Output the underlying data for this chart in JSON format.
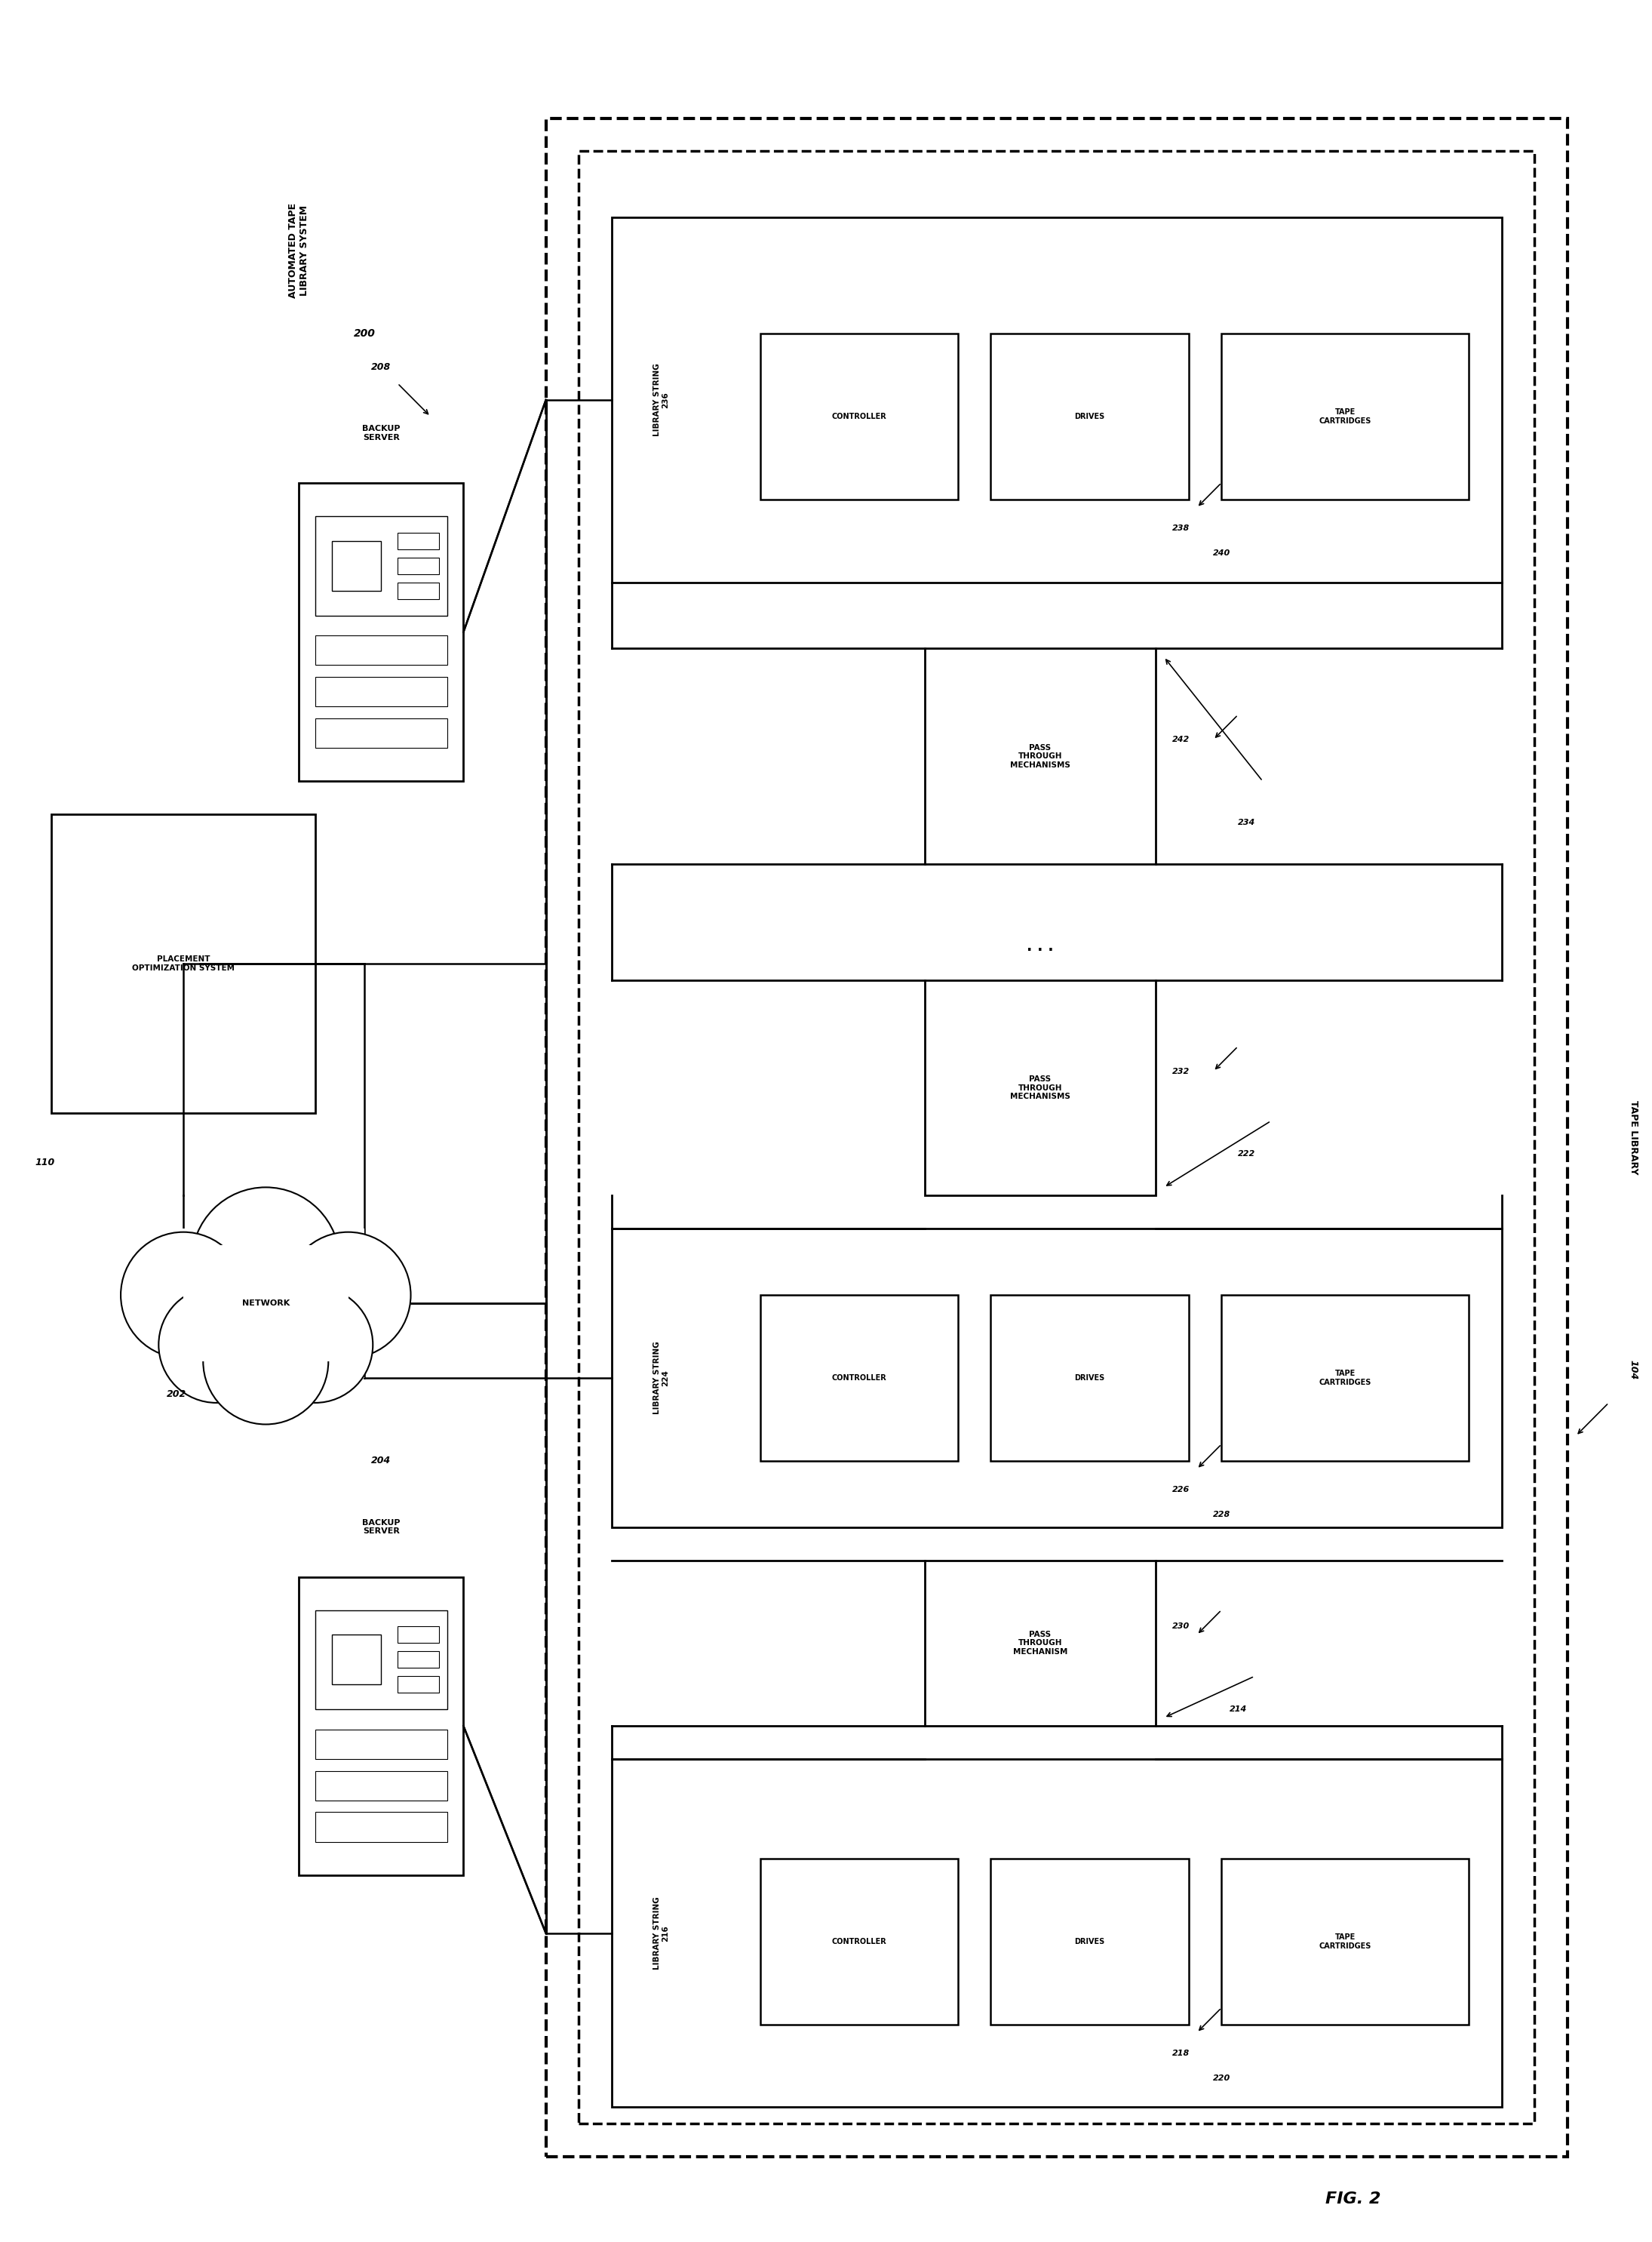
{
  "fig_width": 21.9,
  "fig_height": 29.71,
  "bg_color": "#ffffff",
  "title": "FIG. 2",
  "automated_tape_label": "AUTOMATED TAPE\nLIBRARY SYSTEM",
  "automated_tape_num": "200",
  "tape_library_label": "TAPE LIBRARY",
  "tape_library_num": "104",
  "placement_label": "PLACEMENT\nOPTIMIZATION SYSTEM",
  "placement_num": "110",
  "network_label": "NETWORK",
  "network_num": "202",
  "backup_server1_label": "BACKUP\nSERVER",
  "backup_server1_num": "208",
  "backup_server2_label": "BACKUP\nSERVER",
  "backup_server2_num": "204",
  "library_string1_label": "LIBRARY STRING",
  "library_string1_num": "236",
  "controller1_label": "CONTROLLER",
  "drives1_label": "DRIVES",
  "drives1_num": "240",
  "drives1_arrow_num": "238",
  "tape_cartridges1_label": "TAPE\nCARTRIDGES",
  "library_string2_label": "LIBRARY STRING",
  "library_string2_num": "224",
  "controller2_label": "CONTROLLER",
  "drives2_label": "DRIVES",
  "drives2_num": "228",
  "drives2_arrow_num": "226",
  "tape_cartridges2_label": "TAPE\nCARTRIDGES",
  "library_string3_label": "LIBRARY STRING",
  "library_string3_num": "216",
  "controller3_label": "CONTROLLER",
  "drives3_label": "DRIVES",
  "drives3_num": "220",
  "drives3_arrow_num": "218",
  "tape_cartridges3_label": "TAPE\nCARTRIDGES",
  "pass_through1_label": "PASS\nTHROUGH\nMECHANISMS",
  "pass_through1_num": "242",
  "pass_through1_bracket": "234",
  "pass_through2_label": "PASS\nTHROUGH\nMECHANISMS",
  "pass_through2_num": "232",
  "pass_through2_bracket": "222",
  "pass_through3_label": "PASS\nTHROUGH\nMECHANISM",
  "pass_through3_num": "230",
  "pass_through3_bracket": "214",
  "dots": ". . .",
  "line_color": "#000000",
  "font_family": "DejaVu Sans"
}
